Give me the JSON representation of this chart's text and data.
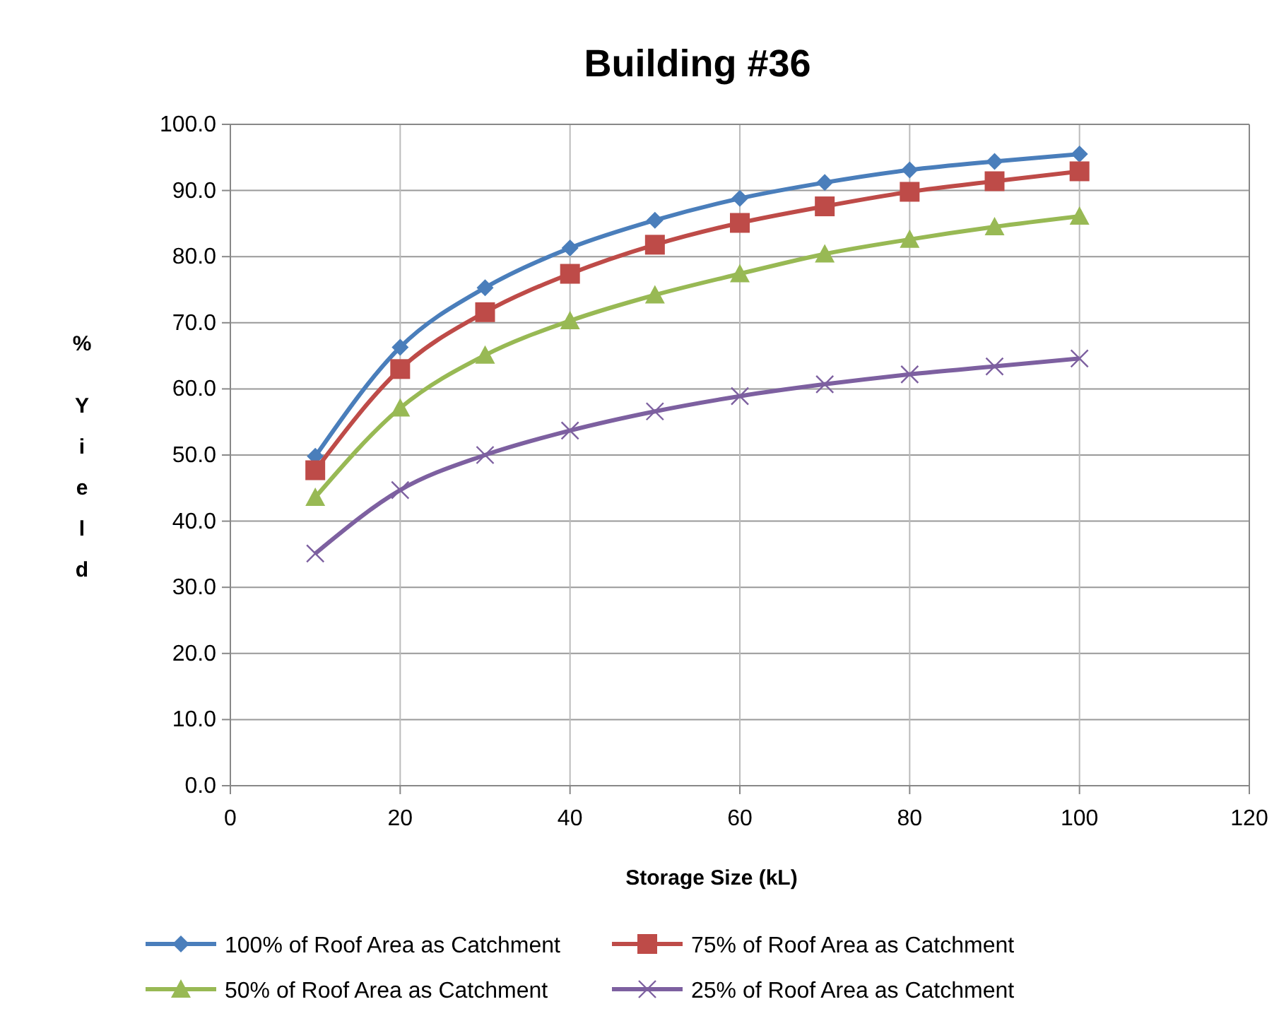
{
  "chart_data": {
    "type": "line",
    "title": "Building #36",
    "xlabel": "Storage Size (kL)",
    "ylabel": "% Yield",
    "x": [
      10,
      20,
      30,
      40,
      50,
      60,
      70,
      80,
      90,
      100
    ],
    "xlim": [
      0,
      120
    ],
    "xticks": [
      0,
      20,
      40,
      60,
      80,
      100,
      120
    ],
    "ylim": [
      0,
      100
    ],
    "yticks": [
      {
        "value": 0,
        "label": "0.0"
      },
      {
        "value": 10,
        "label": "10.0"
      },
      {
        "value": 20,
        "label": "20.0"
      },
      {
        "value": 30,
        "label": "30.0"
      },
      {
        "value": 40,
        "label": "40.0"
      },
      {
        "value": 50,
        "label": "50.0"
      },
      {
        "value": 60,
        "label": "60.0"
      },
      {
        "value": 70,
        "label": "70.0"
      },
      {
        "value": 80,
        "label": "80.0"
      },
      {
        "value": 90,
        "label": "90.0"
      },
      {
        "value": 100,
        "label": "100.0"
      }
    ],
    "grid": true,
    "legend": "bottom",
    "line_style": "solid",
    "series": [
      {
        "name": "100% of Roof Area as Catchment",
        "color": "#4a7ebb",
        "marker": "diamond",
        "values": [
          49.8,
          66.3,
          75.3,
          81.3,
          85.5,
          88.8,
          91.2,
          93.1,
          94.4,
          95.5
        ]
      },
      {
        "name": "75% of Roof Area as Catchment",
        "color": "#be4b48",
        "marker": "square",
        "values": [
          47.7,
          63.0,
          71.6,
          77.4,
          81.8,
          85.1,
          87.6,
          89.8,
          91.4,
          92.9
        ]
      },
      {
        "name": "50% of Roof Area as Catchment",
        "color": "#98b954",
        "marker": "triangle",
        "values": [
          43.6,
          57.1,
          65.1,
          70.3,
          74.2,
          77.4,
          80.4,
          82.6,
          84.5,
          86.1
        ]
      },
      {
        "name": "25% of Roof Area as Catchment",
        "color": "#7d60a0",
        "marker": "cross",
        "values": [
          35.1,
          44.7,
          50.0,
          53.7,
          56.6,
          58.9,
          60.7,
          62.2,
          63.4,
          64.6
        ]
      }
    ]
  }
}
